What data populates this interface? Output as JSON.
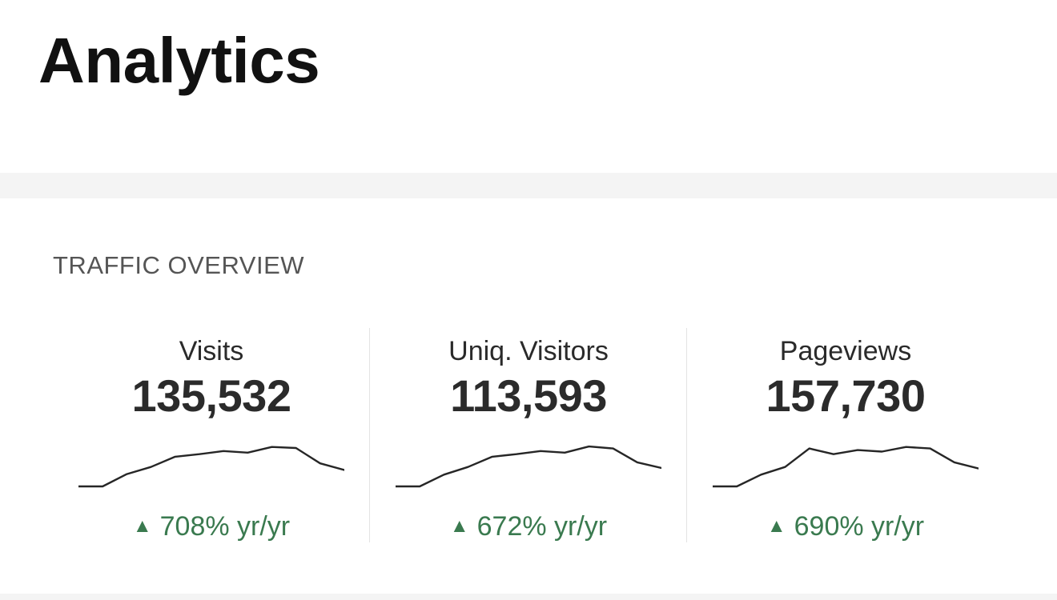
{
  "header": {
    "title": "Analytics"
  },
  "section": {
    "title": "TRAFFIC OVERVIEW"
  },
  "colors": {
    "positive": "#3a7a4f",
    "band": "#f4f4f4"
  },
  "metrics": [
    {
      "label": "Visits",
      "value": "135,532",
      "change_icon": "triangle-up-icon",
      "change": "708% yr/yr",
      "trend": [
        0.0,
        0.0,
        0.24,
        0.38,
        0.58,
        0.63,
        0.69,
        0.66,
        0.77,
        0.75,
        0.45,
        0.32
      ]
    },
    {
      "label": "Uniq. Visitors",
      "value": "113,593",
      "change_icon": "triangle-up-icon",
      "change": "672% yr/yr",
      "trend": [
        0.0,
        0.0,
        0.23,
        0.38,
        0.58,
        0.63,
        0.69,
        0.66,
        0.78,
        0.74,
        0.47,
        0.36
      ]
    },
    {
      "label": "Pageviews",
      "value": "157,730",
      "change_icon": "triangle-up-icon",
      "change": "690% yr/yr",
      "trend": [
        0.0,
        0.0,
        0.23,
        0.38,
        0.74,
        0.63,
        0.71,
        0.68,
        0.77,
        0.74,
        0.47,
        0.35
      ]
    }
  ]
}
